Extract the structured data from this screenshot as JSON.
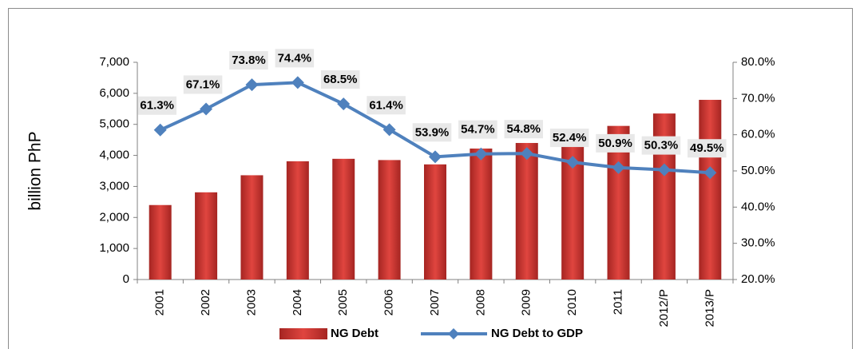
{
  "chart_data": {
    "type": "bar",
    "y_label": "billion  PhP",
    "categories": [
      "2001",
      "2002",
      "2003",
      "2004",
      "2005",
      "2006",
      "2007",
      "2008",
      "2009",
      "2010",
      "2011",
      "2012/P",
      "2013/P"
    ],
    "series": [
      {
        "name": "NG Debt",
        "type": "bar",
        "color": "#c0302c",
        "values": [
          2400,
          2810,
          3360,
          3810,
          3890,
          3850,
          3710,
          4220,
          4400,
          4720,
          4950,
          5350,
          5790
        ]
      },
      {
        "name": "NG Debt to GDP",
        "type": "line",
        "axis": "y2",
        "color": "#4f81bd",
        "values": [
          61.3,
          67.1,
          73.8,
          74.4,
          68.5,
          61.4,
          53.9,
          54.7,
          54.8,
          52.4,
          50.9,
          50.3,
          49.5
        ],
        "value_labels": [
          "61.3%",
          "67.1%",
          "73.8%",
          "74.4%",
          "68.5%",
          "61.4%",
          "53.9%",
          "54.7%",
          "54.8%",
          "52.4%",
          "50.9%",
          "50.3%",
          "49.5%"
        ]
      }
    ],
    "ylim": [
      0,
      7000
    ],
    "yticks": [
      0,
      {
        "value": 1000,
        "label": "1,000"
      },
      {
        "value": 2000,
        "label": "2,000"
      },
      {
        "value": 3000,
        "label": "3,000"
      },
      {
        "value": 4000,
        "label": "4,000"
      },
      {
        "value": 5000,
        "label": "5,000"
      },
      {
        "value": 6000,
        "label": "6,000"
      },
      {
        "value": 7000,
        "label": "7,000"
      }
    ],
    "y2lim": [
      20,
      80
    ],
    "y2ticks": [
      {
        "value": 20,
        "label": "20.0%"
      },
      {
        "value": 30,
        "label": "30.0%"
      },
      {
        "value": 40,
        "label": "40.0%"
      },
      {
        "value": 50,
        "label": "50.0%"
      },
      {
        "value": 60,
        "label": "60.0%"
      },
      {
        "value": 70,
        "label": "70.0%"
      },
      {
        "value": 80,
        "label": "80.0%"
      }
    ],
    "grid": false,
    "legend": "bottom"
  }
}
